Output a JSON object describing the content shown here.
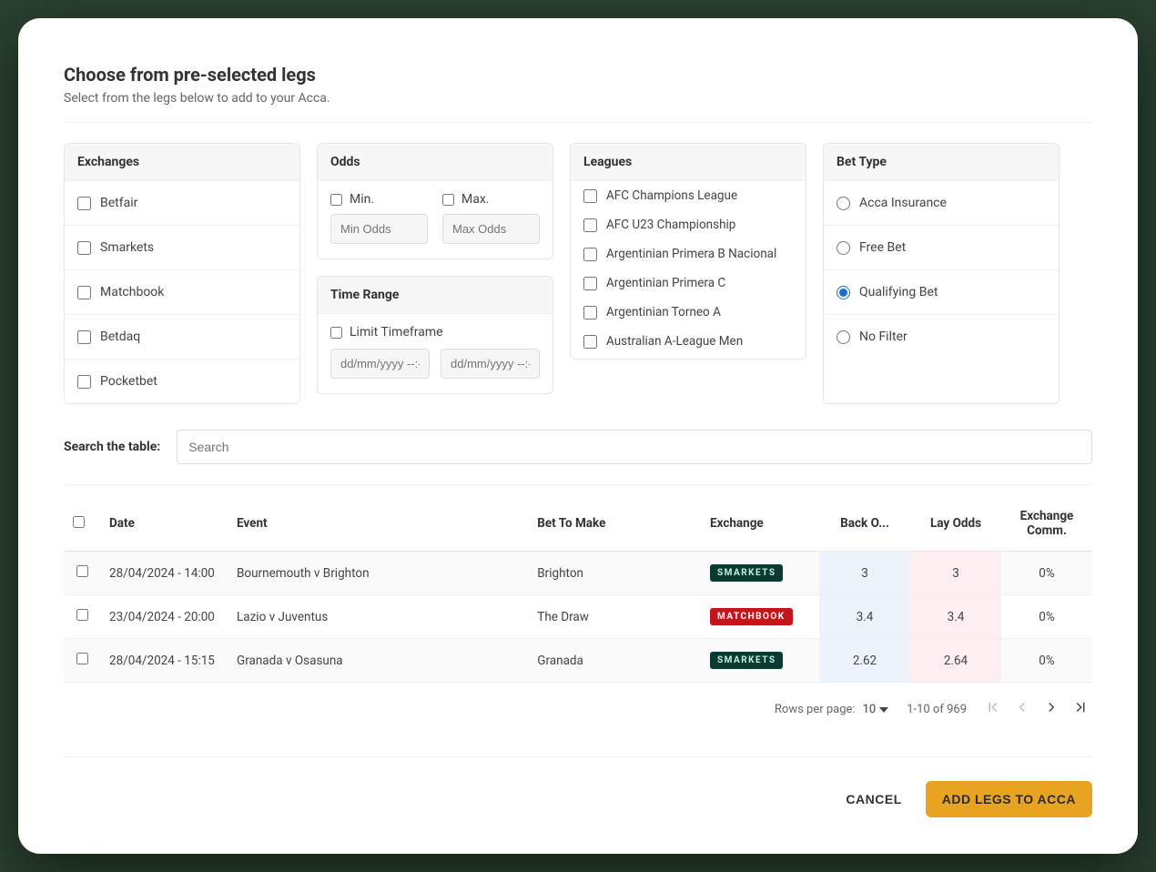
{
  "header": {
    "title": "Choose from pre-selected legs",
    "subtitle": "Select from the legs below to add to your Acca."
  },
  "filters": {
    "exchanges": {
      "title": "Exchanges",
      "items": [
        "Betfair",
        "Smarkets",
        "Matchbook",
        "Betdaq",
        "Pocketbet"
      ]
    },
    "odds": {
      "title": "Odds",
      "min_label": "Min.",
      "max_label": "Max.",
      "min_placeholder": "Min Odds",
      "max_placeholder": "Max Odds"
    },
    "time": {
      "title": "Time Range",
      "limit_label": "Limit Timeframe",
      "date_placeholder": "dd/mm/yyyy --:-"
    },
    "leagues": {
      "title": "Leagues",
      "items": [
        "AFC Champions League",
        "AFC U23 Championship",
        "Argentinian Primera B Nacional",
        "Argentinian Primera C",
        "Argentinian Torneo A",
        "Australian A-League Men"
      ]
    },
    "bettype": {
      "title": "Bet Type",
      "options": [
        "Acca Insurance",
        "Free Bet",
        "Qualifying Bet",
        "No Filter"
      ],
      "selected": "Qualifying Bet"
    }
  },
  "search": {
    "label": "Search the table:",
    "placeholder": "Search"
  },
  "table": {
    "columns": [
      "Date",
      "Event",
      "Bet To Make",
      "Exchange",
      "Back O...",
      "Lay Odds",
      "Exchange Comm."
    ],
    "rows": [
      {
        "date": "28/04/2024 - 14:00",
        "event": "Bournemouth v Brighton",
        "bet": "Brighton",
        "exchange": "SMARKETS",
        "exchange_style": "smarkets",
        "back": "3",
        "lay": "3",
        "comm": "0%"
      },
      {
        "date": "23/04/2024 - 20:00",
        "event": "Lazio v Juventus",
        "bet": "The Draw",
        "exchange": "MATCHBOOK",
        "exchange_style": "matchbook",
        "back": "3.4",
        "lay": "3.4",
        "comm": "0%"
      },
      {
        "date": "28/04/2024 - 15:15",
        "event": "Granada v Osasuna",
        "bet": "Granada",
        "exchange": "SMARKETS",
        "exchange_style": "smarkets",
        "back": "2.62",
        "lay": "2.64",
        "comm": "0%"
      }
    ]
  },
  "pagination": {
    "rows_per_page_label": "Rows per page:",
    "rows_per_page_value": "10",
    "range_text": "1-10 of 969"
  },
  "actions": {
    "cancel": "CANCEL",
    "add": "ADD LEGS TO ACCA"
  },
  "colors": {
    "accent": "#e8a321",
    "back_bg": "#ecf3fb",
    "lay_bg": "#fdeef0",
    "smarkets_bg": "#0a3a32",
    "matchbook_bg": "#c4151c"
  }
}
